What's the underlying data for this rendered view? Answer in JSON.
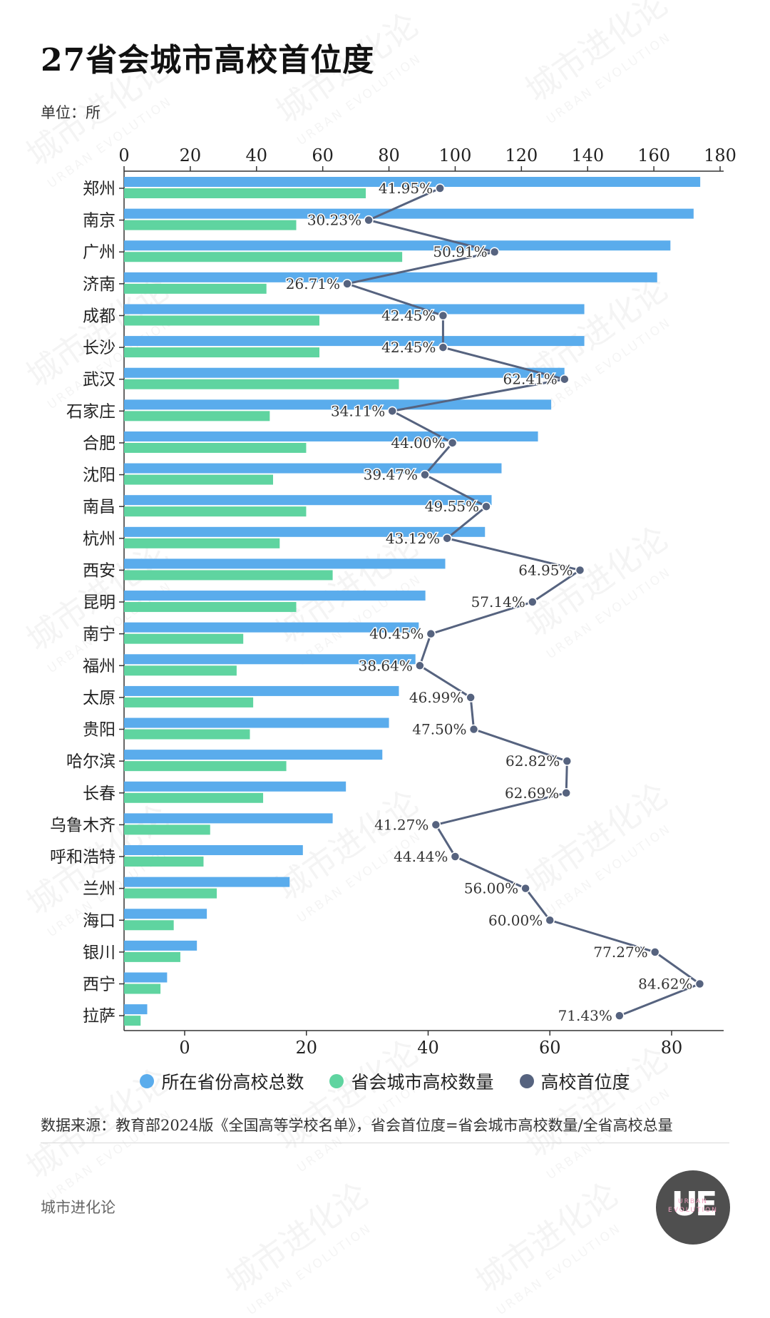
{
  "title": "27省会城市高校首位度",
  "unit": "单位：所",
  "source": "数据来源：教育部2024版《全国高等学校名单》，省会首位度=省会城市高校数量/全省高校总量",
  "brand": "城市进化论",
  "logo": {
    "mark": "UE",
    "sub": "URBAN EVOLUTION"
  },
  "watermark": {
    "text": "城市进化论",
    "sub": "URBAN EVOLUTION"
  },
  "colors": {
    "total": "#5aacec",
    "capital": "#5fd4a0",
    "primacy": "#56637f"
  },
  "chart_data": {
    "type": "bar",
    "title": "27省会城市高校首位度",
    "categories": [
      "郑州",
      "南京",
      "广州",
      "济南",
      "成都",
      "长沙",
      "武汉",
      "石家庄",
      "合肥",
      "沈阳",
      "南昌",
      "杭州",
      "西安",
      "昆明",
      "南宁",
      "福州",
      "太原",
      "贵阳",
      "哈尔滨",
      "长春",
      "乌鲁木齐",
      "呼和浩特",
      "兰州",
      "海口",
      "银川",
      "西宁",
      "拉萨"
    ],
    "series": [
      {
        "name": "所在省份高校总数",
        "axis": "top",
        "values": [
          174,
          172,
          165,
          161,
          139,
          139,
          133,
          129,
          125,
          114,
          111,
          109,
          97,
          91,
          89,
          88,
          83,
          80,
          78,
          67,
          63,
          54,
          50,
          25,
          22,
          13,
          7
        ]
      },
      {
        "name": "省会城市高校数量",
        "axis": "top",
        "values": [
          73,
          52,
          84,
          43,
          59,
          59,
          83,
          44,
          55,
          45,
          55,
          47,
          63,
          52,
          36,
          34,
          39,
          38,
          49,
          42,
          26,
          24,
          28,
          15,
          17,
          11,
          5
        ]
      },
      {
        "name": "高校首位度",
        "axis": "bottom",
        "unit": "%",
        "values": [
          41.95,
          30.23,
          50.91,
          26.71,
          42.45,
          42.45,
          62.41,
          34.11,
          44.0,
          39.47,
          49.55,
          43.12,
          64.95,
          57.14,
          40.45,
          38.64,
          46.99,
          47.5,
          62.82,
          62.69,
          41.27,
          44.44,
          56.0,
          60.0,
          77.27,
          84.62,
          71.43
        ],
        "labels": [
          "41.95%",
          "30.23%",
          "50.91%",
          "26.71%",
          "42.45%",
          "42.45%",
          "62.41%",
          "34.11%",
          "44.00%",
          "39.47%",
          "49.55%",
          "43.12%",
          "64.95%",
          "57.14%",
          "40.45%",
          "38.64%",
          "46.99%",
          "47.50%",
          "62.82%",
          "62.69%",
          "41.27%",
          "44.44%",
          "56.00%",
          "60.00%",
          "77.27%",
          "84.62%",
          "71.43%"
        ]
      }
    ],
    "top_axis": {
      "ticks": [
        0,
        20,
        40,
        60,
        80,
        100,
        120,
        140,
        160,
        180
      ],
      "ylim": [
        0,
        180
      ]
    },
    "bottom_axis": {
      "ticks": [
        0,
        20,
        40,
        60,
        80
      ],
      "ylim": [
        -10,
        89
      ]
    },
    "legend": {
      "placement": "bottom",
      "entries": [
        "所在省份高校总数",
        "省会城市高校数量",
        "高校首位度"
      ]
    }
  }
}
